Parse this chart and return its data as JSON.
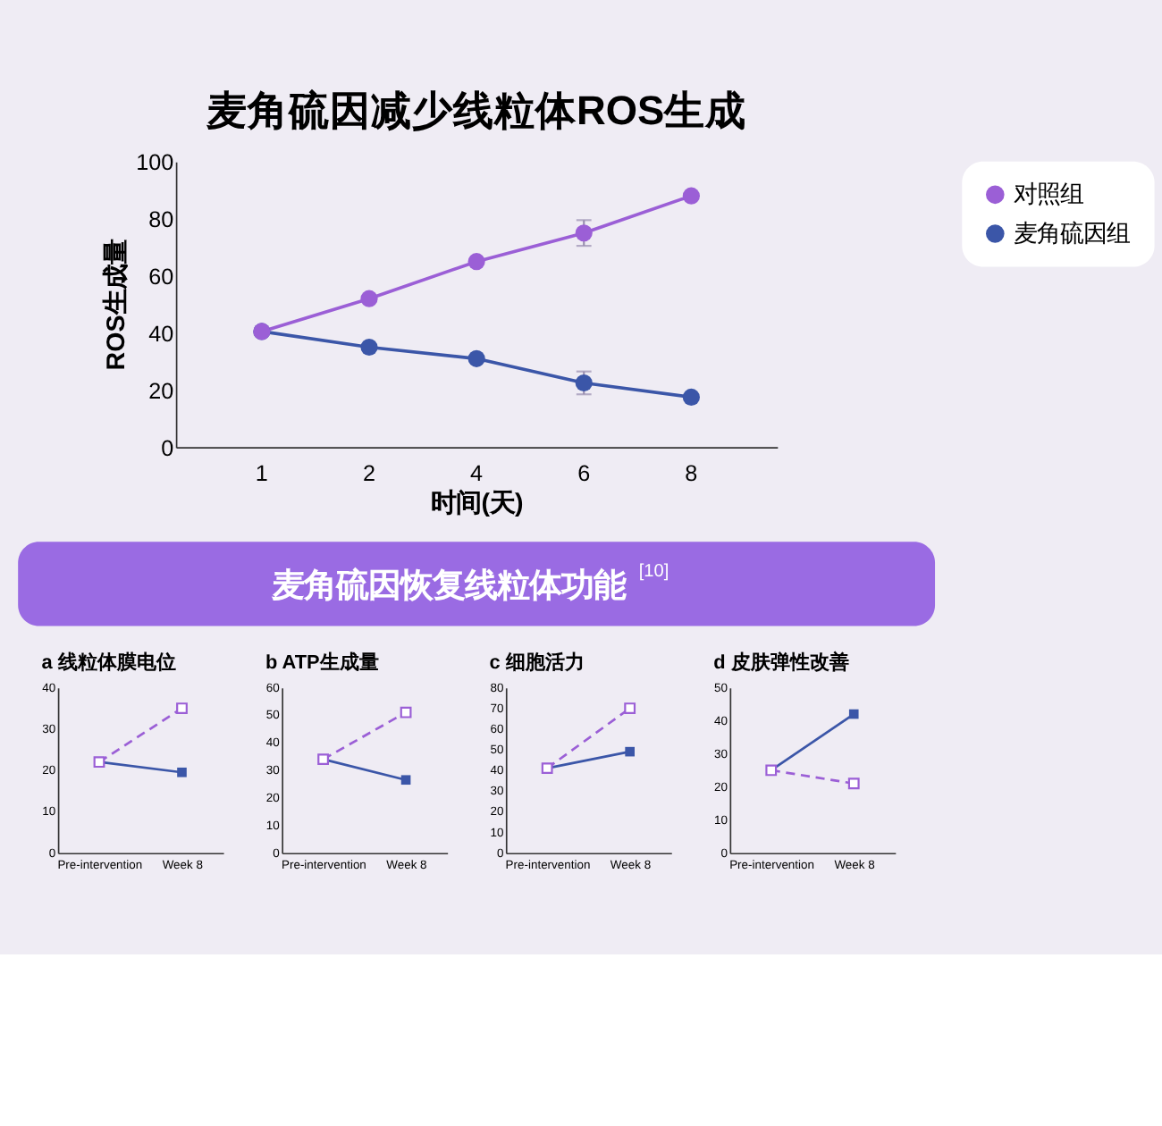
{
  "chart_data": [
    {
      "type": "line",
      "title": "麦角硫因减少线粒体ROS生成",
      "xlabel": "时间(天)",
      "ylabel": "ROS生成量",
      "categories": [
        "1",
        "2",
        "4",
        "6",
        "8"
      ],
      "ylim": [
        0,
        100
      ],
      "yticks": [
        0,
        20,
        40,
        60,
        80,
        100
      ],
      "grid": false,
      "legend": "top right",
      "marker": "circle",
      "line_style": "solid",
      "series": [
        {
          "name": "对照组",
          "color": "#9b5fd6",
          "values": [
            40.5,
            52,
            65,
            75,
            88
          ],
          "errors": [
            null,
            null,
            null,
            4.5,
            null
          ]
        },
        {
          "name": "麦角硫因组",
          "color": "#3b56a8",
          "values": [
            40.5,
            35,
            31,
            22.5,
            17.5
          ],
          "errors": [
            null,
            null,
            null,
            4,
            null
          ]
        }
      ],
      "annotations": [
        "麦角硫因恢复线粒体功能$^{[10]}$"
      ]
    },
    {
      "type": "line",
      "title": "a 线粒体膜电位",
      "categories": [
        "Pre-intervention",
        "Week 8"
      ],
      "ylim": [
        0,
        40
      ],
      "yticks": [
        0,
        10,
        20,
        30,
        40
      ],
      "grid": false,
      "marker": "square",
      "series": [
        {
          "color": "#9b5fd6",
          "values": [
            22,
            35
          ],
          "line_style": "dashed"
        },
        {
          "color": "#3b56a8",
          "values": [
            22,
            19.5
          ],
          "line_style": "solid"
        }
      ]
    },
    {
      "type": "line",
      "title": "b ATP生成量",
      "categories": [
        "Pre-intervention",
        "Week 8"
      ],
      "ylim": [
        0,
        60
      ],
      "yticks": [
        0,
        10,
        20,
        30,
        40,
        50,
        60
      ],
      "grid": false,
      "marker": "square",
      "series": [
        {
          "color": "#9b5fd6",
          "values": [
            34,
            51
          ],
          "line_style": "dashed"
        },
        {
          "color": "#3b56a8",
          "values": [
            34,
            26.5
          ],
          "line_style": "solid"
        }
      ]
    },
    {
      "type": "line",
      "title": "c 细胞活力",
      "categories": [
        "Pre-intervention",
        "Week 8"
      ],
      "ylim": [
        0,
        80
      ],
      "yticks": [
        0,
        10,
        20,
        30,
        40,
        50,
        60,
        70,
        80
      ],
      "grid": false,
      "marker": "square",
      "series": [
        {
          "color": "#9b5fd6",
          "values": [
            41,
            70
          ],
          "line_style": "dashed"
        },
        {
          "color": "#3b56a8",
          "values": [
            41,
            49
          ],
          "line_style": "solid"
        }
      ]
    },
    {
      "type": "line",
      "title": "d 皮肤弹性改善",
      "categories": [
        "Pre-intervention",
        "Week 8"
      ],
      "ylim": [
        0,
        50
      ],
      "yticks": [
        0,
        10,
        20,
        30,
        40,
        50
      ],
      "grid": false,
      "marker": "square",
      "series": [
        {
          "color": "#9b5fd6",
          "values": [
            25,
            21
          ],
          "line_style": "dashed"
        },
        {
          "color": "#3b56a8",
          "values": [
            25,
            42
          ],
          "line_style": "solid"
        }
      ]
    }
  ]
}
